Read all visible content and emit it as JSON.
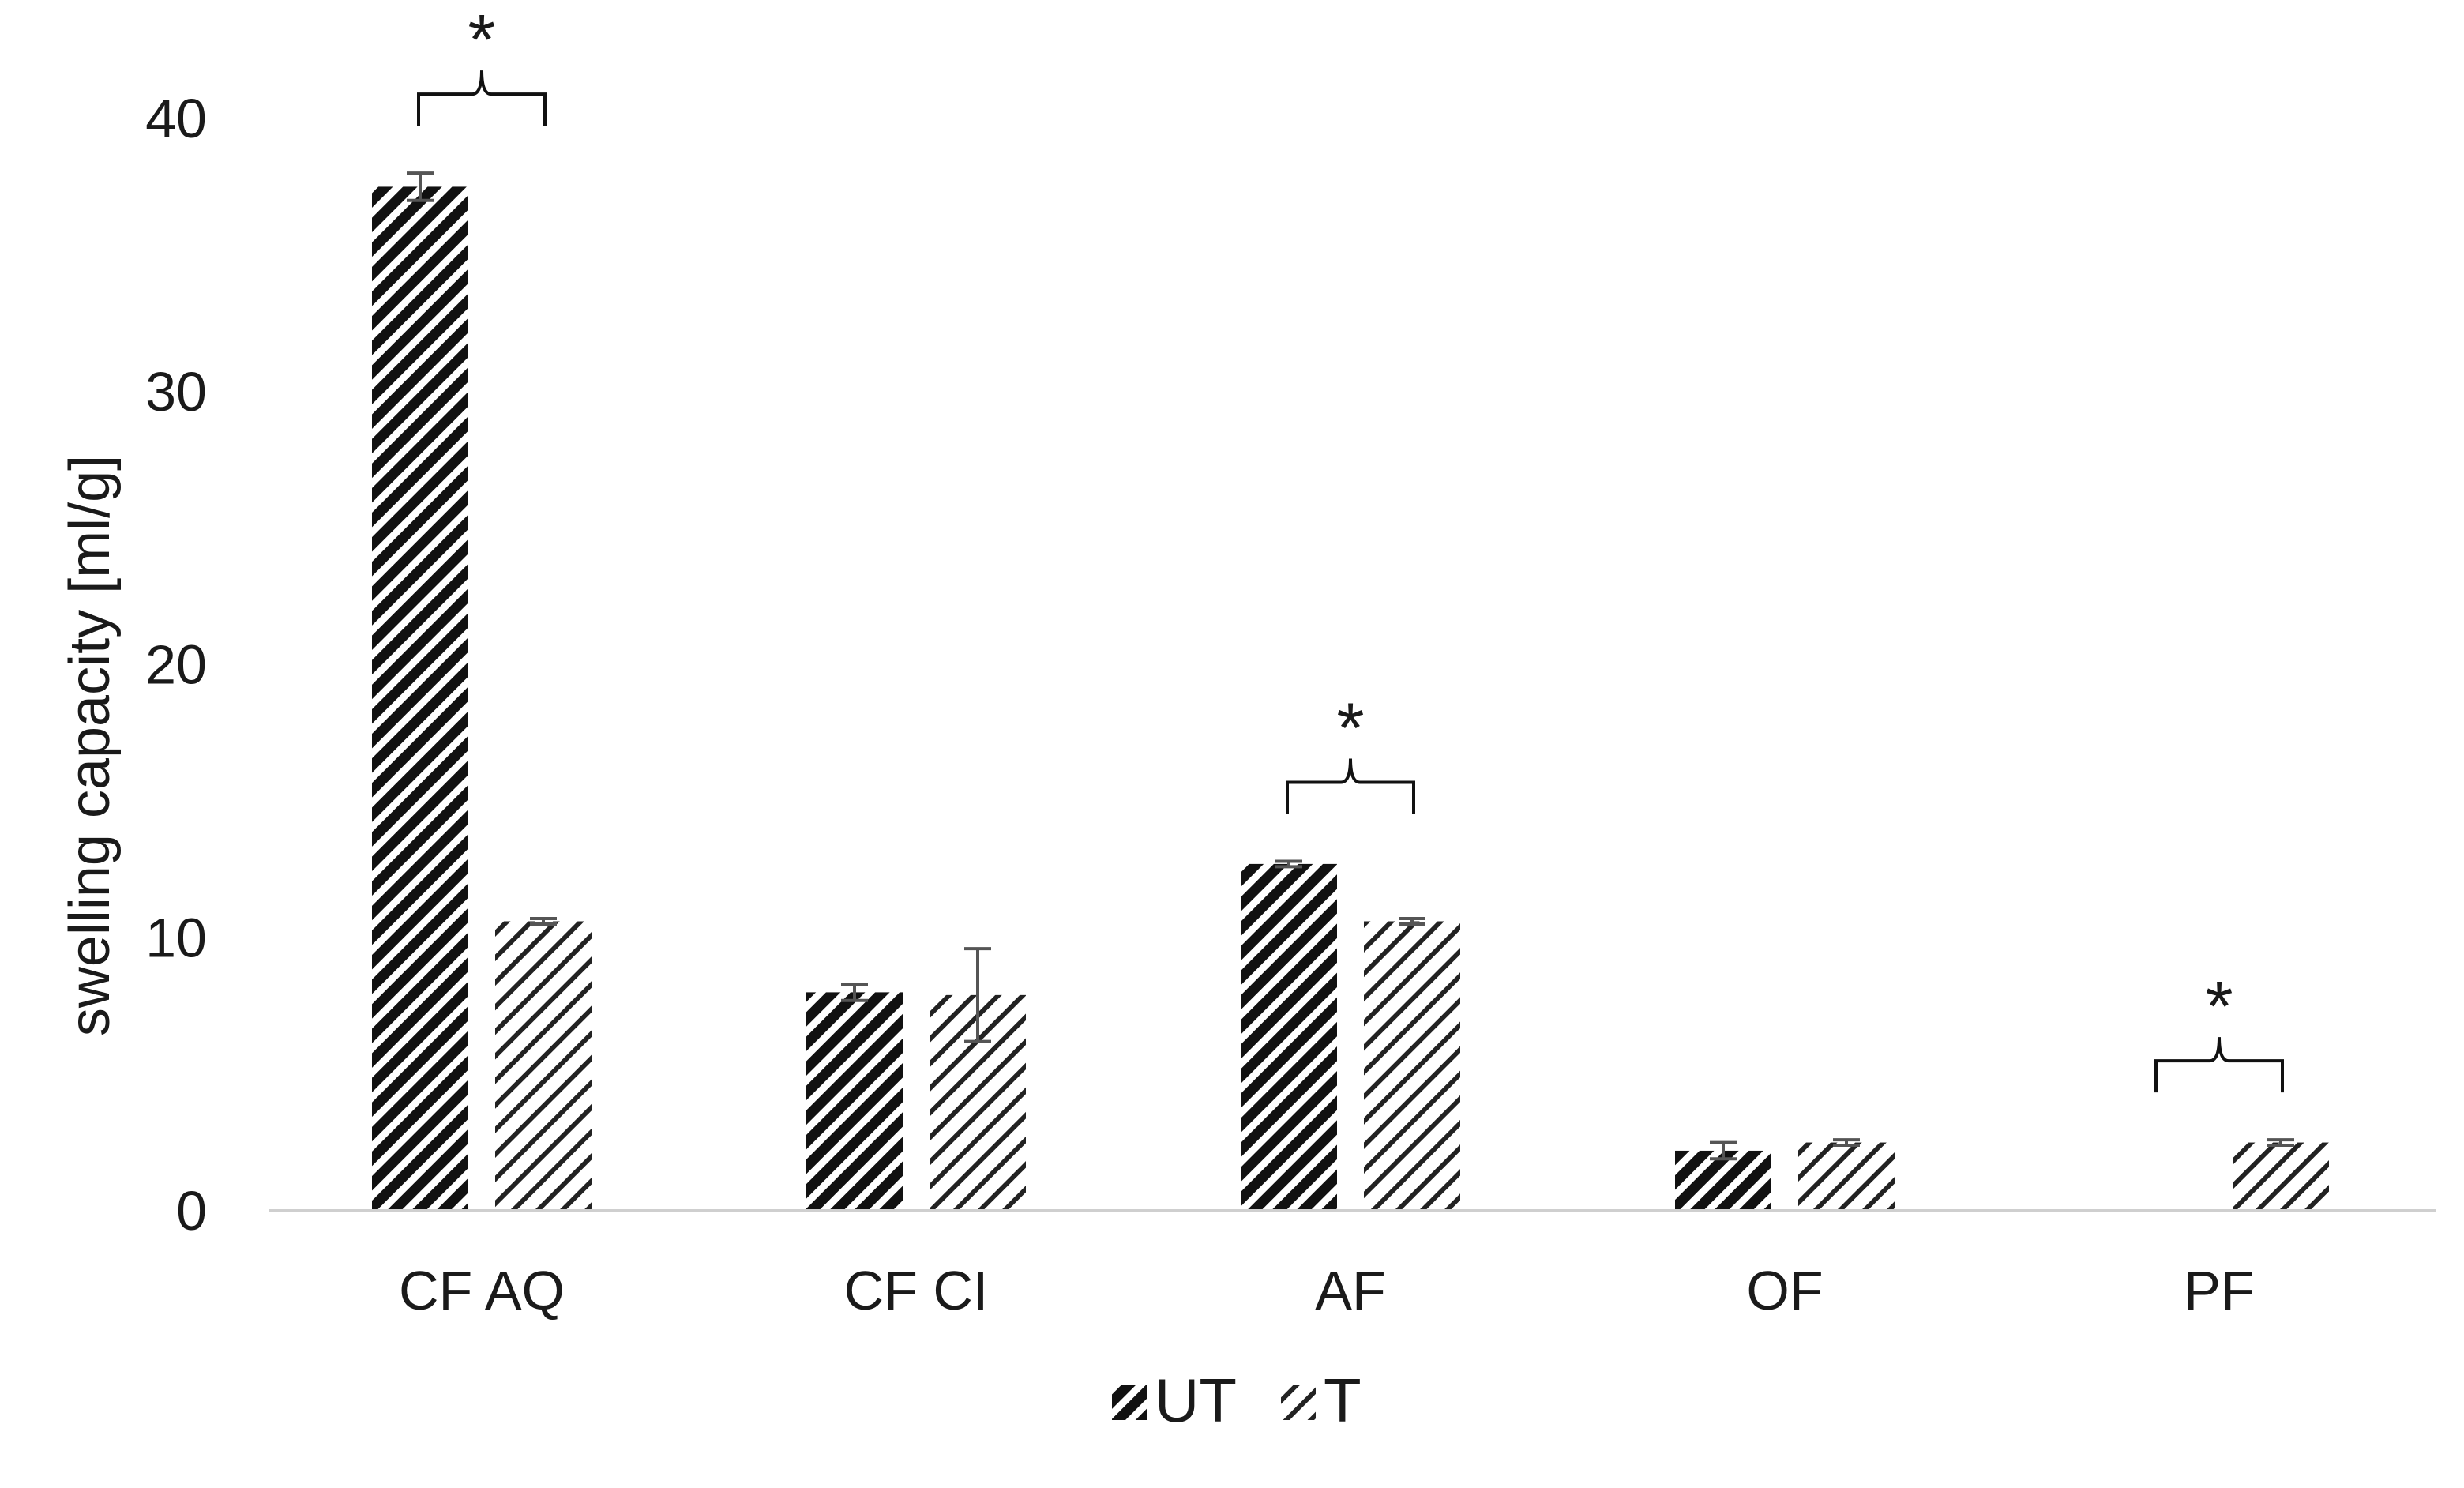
{
  "chart_data": {
    "type": "bar",
    "ylabel": "swelling capacity [ml/g]",
    "xlabel": "",
    "ylim": [
      0,
      40
    ],
    "yticks": [
      "0",
      "10",
      "20",
      "30",
      "40"
    ],
    "grid": false,
    "legend_position": "bottom-center",
    "categories": [
      "CF AQ",
      "CF CI",
      "AF",
      "OF",
      "PF"
    ],
    "series": [
      {
        "name": "UT",
        "pattern": "dense-diagonal-hatch",
        "color": "#111111",
        "values": [
          37.5,
          8.0,
          12.7,
          2.2,
          null
        ],
        "errors": [
          0.5,
          0.3,
          0.1,
          0.3,
          null
        ]
      },
      {
        "name": "T",
        "pattern": "light-diagonal-hatch",
        "color": "#222222",
        "values": [
          10.6,
          7.9,
          10.6,
          2.5,
          2.5
        ],
        "errors": [
          0.1,
          1.7,
          0.1,
          0.1,
          0.1
        ]
      }
    ],
    "significance": [
      {
        "category": "CF AQ",
        "label": "*"
      },
      {
        "category": "AF",
        "label": "*"
      },
      {
        "category": "PF",
        "label": "*"
      }
    ]
  }
}
